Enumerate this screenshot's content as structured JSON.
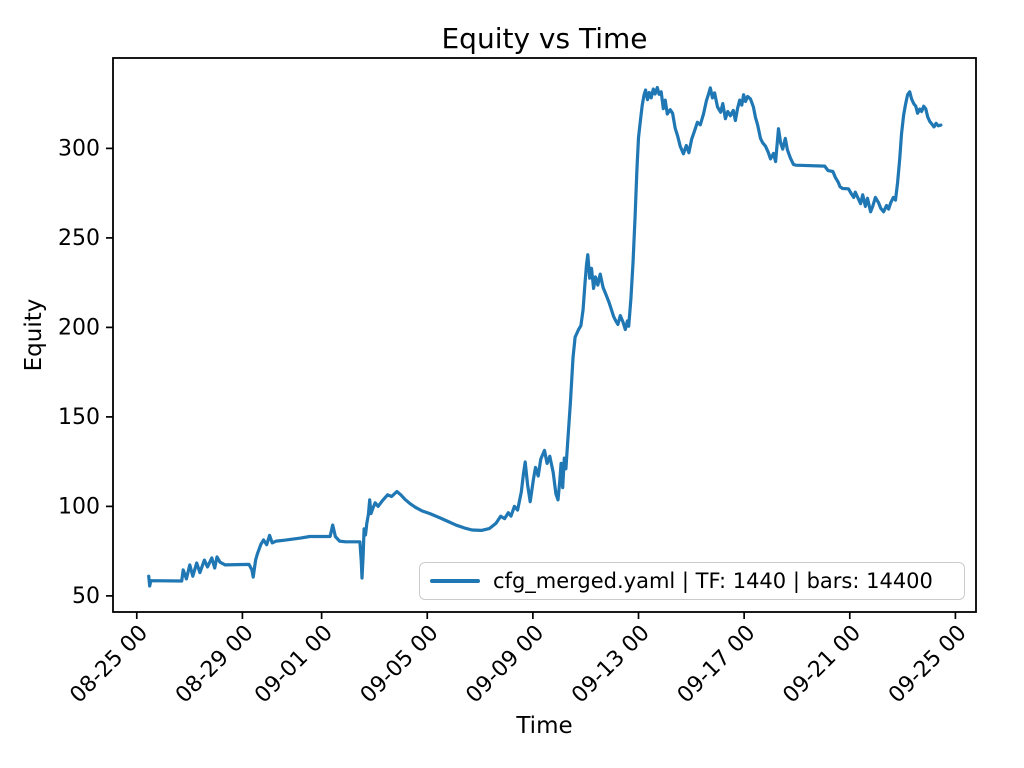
{
  "figure": {
    "background": "#ffffff",
    "text_color": "#000000"
  },
  "chart_data": {
    "type": "line",
    "title": "Equity vs Time",
    "xlabel": "Time",
    "ylabel": "Equity",
    "grid": false,
    "line_color": "#1f77b4",
    "legend": {
      "position": "lower right",
      "entries": [
        {
          "label": "cfg_merged.yaml | TF: 1440 | bars: 14400",
          "color": "#1f77b4"
        }
      ]
    },
    "x_axis": {
      "unit": "days since first tick (08-25 00:00)",
      "tick_positions": [
        0,
        4,
        7,
        11,
        15,
        19,
        23,
        27,
        31
      ],
      "tick_labels": [
        "08-25 00",
        "08-29 00",
        "09-01 00",
        "09-05 00",
        "09-09 00",
        "09-13 00",
        "09-17 00",
        "09-21 00",
        "09-25 00"
      ],
      "lim": [
        -0.9,
        31.78
      ],
      "tick_rotation_deg": 45
    },
    "y_axis": {
      "tick_positions": [
        50,
        100,
        150,
        200,
        250,
        300
      ],
      "tick_labels": [
        "50",
        "100",
        "150",
        "200",
        "250",
        "300"
      ],
      "lim": [
        41,
        350.5
      ]
    },
    "series": [
      {
        "name": "cfg_merged.yaml | TF: 1440 | bars: 14400",
        "color": "#1f77b4",
        "points": [
          [
            0.45,
            61
          ],
          [
            0.49,
            55.5
          ],
          [
            0.53,
            58.5
          ],
          [
            1.7,
            58.3
          ],
          [
            1.76,
            64.5
          ],
          [
            1.88,
            59.5
          ],
          [
            2.01,
            67.3
          ],
          [
            2.12,
            61
          ],
          [
            2.27,
            68.4
          ],
          [
            2.39,
            63
          ],
          [
            2.56,
            70
          ],
          [
            2.68,
            66.2
          ],
          [
            2.84,
            71.2
          ],
          [
            2.95,
            65.6
          ],
          [
            3.04,
            71.8
          ],
          [
            3.15,
            68.8
          ],
          [
            3.35,
            67.3
          ],
          [
            4.25,
            67.6
          ],
          [
            4.36,
            64.5
          ],
          [
            4.41,
            60.5
          ],
          [
            4.5,
            70
          ],
          [
            4.57,
            73.5
          ],
          [
            4.7,
            78.8
          ],
          [
            4.8,
            81.3
          ],
          [
            4.92,
            78.6
          ],
          [
            5.03,
            83.8
          ],
          [
            5.13,
            79.6
          ],
          [
            5.28,
            80.6
          ],
          [
            5.6,
            81.1
          ],
          [
            6.2,
            82.3
          ],
          [
            6.55,
            83.2
          ],
          [
            7.32,
            83.2
          ],
          [
            7.42,
            89.6
          ],
          [
            7.52,
            83.1
          ],
          [
            7.68,
            80.6
          ],
          [
            7.9,
            80.2
          ],
          [
            8.45,
            80.2
          ],
          [
            8.5,
            70
          ],
          [
            8.53,
            60
          ],
          [
            8.57,
            72
          ],
          [
            8.61,
            87.5
          ],
          [
            8.66,
            84
          ],
          [
            8.71,
            90.5
          ],
          [
            8.77,
            95.5
          ],
          [
            8.82,
            103.6
          ],
          [
            8.87,
            96
          ],
          [
            8.94,
            99
          ],
          [
            9.03,
            102
          ],
          [
            9.14,
            100
          ],
          [
            9.3,
            103.2
          ],
          [
            9.5,
            106.5
          ],
          [
            9.65,
            105.5
          ],
          [
            9.85,
            108.3
          ],
          [
            10.0,
            106.5
          ],
          [
            10.15,
            104
          ],
          [
            10.35,
            101.5
          ],
          [
            10.55,
            99.5
          ],
          [
            10.8,
            97.5
          ],
          [
            11.1,
            96
          ],
          [
            11.45,
            93.8
          ],
          [
            11.8,
            91.5
          ],
          [
            12.1,
            89.5
          ],
          [
            12.4,
            88
          ],
          [
            12.7,
            86.8
          ],
          [
            13.05,
            86.6
          ],
          [
            13.35,
            87.6
          ],
          [
            13.6,
            90.5
          ],
          [
            13.78,
            94.5
          ],
          [
            13.93,
            93.2
          ],
          [
            14.07,
            96.5
          ],
          [
            14.17,
            94.6
          ],
          [
            14.3,
            100
          ],
          [
            14.42,
            98
          ],
          [
            14.56,
            108
          ],
          [
            14.64,
            118
          ],
          [
            14.71,
            124.8
          ],
          [
            14.8,
            112
          ],
          [
            14.9,
            102.6
          ],
          [
            15.02,
            115
          ],
          [
            15.1,
            121.8
          ],
          [
            15.2,
            117
          ],
          [
            15.3,
            126.5
          ],
          [
            15.44,
            131.3
          ],
          [
            15.54,
            124
          ],
          [
            15.64,
            128
          ],
          [
            15.77,
            119
          ],
          [
            15.87,
            107
          ],
          [
            15.95,
            103.6
          ],
          [
            16.01,
            113
          ],
          [
            16.07,
            124
          ],
          [
            16.13,
            110.5
          ],
          [
            16.19,
            127
          ],
          [
            16.25,
            121
          ],
          [
            16.32,
            136
          ],
          [
            16.42,
            158
          ],
          [
            16.52,
            183
          ],
          [
            16.6,
            194.5
          ],
          [
            16.72,
            198.5
          ],
          [
            16.82,
            201
          ],
          [
            16.9,
            210
          ],
          [
            16.97,
            224
          ],
          [
            17.03,
            235
          ],
          [
            17.08,
            240.6
          ],
          [
            17.15,
            227.5
          ],
          [
            17.22,
            233
          ],
          [
            17.3,
            221.8
          ],
          [
            17.37,
            228.2
          ],
          [
            17.46,
            223.6
          ],
          [
            17.55,
            229.8
          ],
          [
            17.66,
            222.3
          ],
          [
            17.76,
            218.6
          ],
          [
            17.88,
            214.2
          ],
          [
            17.96,
            210.6
          ],
          [
            18.06,
            206
          ],
          [
            18.14,
            203.6
          ],
          [
            18.22,
            201.6
          ],
          [
            18.31,
            206.6
          ],
          [
            18.41,
            203.2
          ],
          [
            18.5,
            198.8
          ],
          [
            18.58,
            203.6
          ],
          [
            18.63,
            200.6
          ],
          [
            18.71,
            216
          ],
          [
            18.79,
            236
          ],
          [
            18.87,
            262
          ],
          [
            18.94,
            288
          ],
          [
            19.0,
            306
          ],
          [
            19.07,
            315.5
          ],
          [
            19.14,
            324
          ],
          [
            19.21,
            330
          ],
          [
            19.27,
            332.6
          ],
          [
            19.34,
            327.2
          ],
          [
            19.41,
            331.2
          ],
          [
            19.48,
            328.2
          ],
          [
            19.56,
            333.2
          ],
          [
            19.63,
            330.4
          ],
          [
            19.71,
            334
          ],
          [
            19.78,
            330.2
          ],
          [
            19.86,
            331.6
          ],
          [
            19.94,
            322.2
          ],
          [
            20.01,
            327
          ],
          [
            20.09,
            319.2
          ],
          [
            20.2,
            321.6
          ],
          [
            20.29,
            319.6
          ],
          [
            20.39,
            311.2
          ],
          [
            20.48,
            307
          ],
          [
            20.58,
            301.2
          ],
          [
            20.7,
            297
          ],
          [
            20.81,
            301.6
          ],
          [
            20.91,
            297.6
          ],
          [
            21.01,
            305
          ],
          [
            21.11,
            309.2
          ],
          [
            21.23,
            314.6
          ],
          [
            21.34,
            313.2
          ],
          [
            21.46,
            319.2
          ],
          [
            21.57,
            326.6
          ],
          [
            21.65,
            330.2
          ],
          [
            21.72,
            333.8
          ],
          [
            21.8,
            328.2
          ],
          [
            21.88,
            331
          ],
          [
            21.99,
            323.2
          ],
          [
            22.11,
            320.2
          ],
          [
            22.19,
            325
          ],
          [
            22.29,
            316.6
          ],
          [
            22.38,
            320.6
          ],
          [
            22.48,
            318.2
          ],
          [
            22.59,
            321.2
          ],
          [
            22.67,
            315.6
          ],
          [
            22.75,
            322.2
          ],
          [
            22.83,
            327
          ],
          [
            22.91,
            324.2
          ],
          [
            22.98,
            330
          ],
          [
            23.05,
            326.2
          ],
          [
            23.13,
            329
          ],
          [
            23.24,
            327.6
          ],
          [
            23.35,
            323.2
          ],
          [
            23.43,
            317.2
          ],
          [
            23.51,
            313.2
          ],
          [
            23.62,
            305.6
          ],
          [
            23.7,
            303.2
          ],
          [
            23.81,
            301.2
          ],
          [
            23.92,
            297.6
          ],
          [
            24.0,
            294.2
          ],
          [
            24.11,
            297.2
          ],
          [
            24.19,
            292.6
          ],
          [
            24.3,
            311
          ],
          [
            24.38,
            303.2
          ],
          [
            24.46,
            299.6
          ],
          [
            24.56,
            305.6
          ],
          [
            24.64,
            299.2
          ],
          [
            24.75,
            294.6
          ],
          [
            24.87,
            291
          ],
          [
            24.96,
            290.6
          ],
          [
            26.05,
            290.1
          ],
          [
            26.18,
            287.6
          ],
          [
            26.36,
            287.1
          ],
          [
            26.46,
            283.6
          ],
          [
            26.56,
            281.1
          ],
          [
            26.63,
            278.6
          ],
          [
            26.73,
            277.6
          ],
          [
            26.95,
            277.4
          ],
          [
            27.06,
            274.6
          ],
          [
            27.15,
            272.6
          ],
          [
            27.21,
            275.6
          ],
          [
            27.33,
            271.6
          ],
          [
            27.41,
            269.1
          ],
          [
            27.49,
            274.1
          ],
          [
            27.59,
            267.6
          ],
          [
            27.67,
            272.1
          ],
          [
            27.79,
            264.6
          ],
          [
            27.87,
            267.6
          ],
          [
            27.97,
            272.6
          ],
          [
            28.09,
            269.6
          ],
          [
            28.17,
            266.6
          ],
          [
            28.28,
            264.6
          ],
          [
            28.39,
            268.1
          ],
          [
            28.47,
            266.1
          ],
          [
            28.55,
            269.6
          ],
          [
            28.65,
            272.6
          ],
          [
            28.73,
            271.1
          ],
          [
            28.81,
            281
          ],
          [
            28.89,
            294
          ],
          [
            28.96,
            308
          ],
          [
            29.04,
            318.5
          ],
          [
            29.11,
            324.5
          ],
          [
            29.19,
            330
          ],
          [
            29.27,
            331.6
          ],
          [
            29.34,
            327.6
          ],
          [
            29.42,
            325
          ],
          [
            29.5,
            323.6
          ],
          [
            29.57,
            319.6
          ],
          [
            29.65,
            322
          ],
          [
            29.72,
            320.6
          ],
          [
            29.8,
            323.6
          ],
          [
            29.88,
            322
          ],
          [
            29.95,
            317.6
          ],
          [
            30.03,
            315
          ],
          [
            30.11,
            313.6
          ],
          [
            30.19,
            312
          ],
          [
            30.27,
            314
          ],
          [
            30.35,
            312.6
          ],
          [
            30.45,
            313
          ]
        ]
      }
    ]
  }
}
